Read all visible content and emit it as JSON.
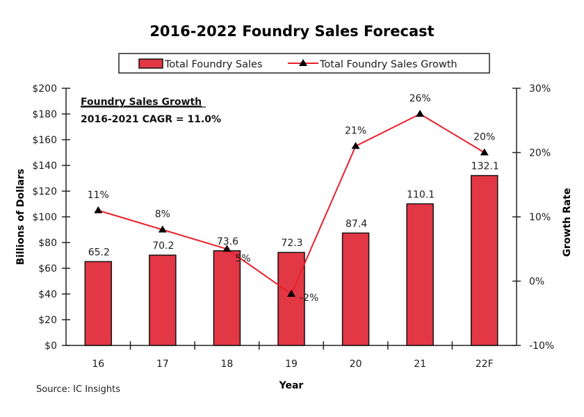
{
  "chart_data": {
    "type": "bar",
    "title": "2016-2022 Foundry Sales Forecast",
    "xlabel": "Year",
    "ylabel": "Billions of Dollars",
    "y2label": "Growth Rate",
    "categories": [
      "16",
      "17",
      "18",
      "19",
      "20",
      "21",
      "22F"
    ],
    "ylim": [
      0,
      200
    ],
    "yticks": [
      0,
      20,
      40,
      60,
      80,
      100,
      120,
      140,
      160,
      180,
      200
    ],
    "ytick_labels": [
      "$0",
      "$20",
      "$40",
      "$60",
      "$80",
      "$100",
      "$120",
      "$140",
      "$160",
      "$180",
      "$200"
    ],
    "y2lim": [
      -10,
      30
    ],
    "y2ticks": [
      -10,
      0,
      10,
      20,
      30
    ],
    "y2tick_labels": [
      "-10%",
      "0%",
      "10%",
      "20%",
      "30%"
    ],
    "grid": false,
    "legend_position": "top",
    "series": [
      {
        "name": "Total Foundry Sales",
        "type": "bar",
        "axis": "left",
        "color": "#e23744",
        "values": [
          65.2,
          70.2,
          73.6,
          72.3,
          87.4,
          110.1,
          132.1
        ],
        "labels": [
          "65.2",
          "70.2",
          "73.6",
          "72.3",
          "87.4",
          "110.1",
          "132.1"
        ]
      },
      {
        "name": "Total Foundry Sales Growth",
        "type": "line",
        "axis": "right",
        "color": "#e8202a",
        "marker": "triangle",
        "marker_color": "#000000",
        "values": [
          11,
          8,
          5,
          -2,
          21,
          26,
          20
        ],
        "labels": [
          "11%",
          "8%",
          "5%",
          "-2%",
          "21%",
          "26%",
          "20%"
        ]
      }
    ],
    "annotations": {
      "note_title": "Foundry Sales Growth",
      "note_body": "2016-2021 CAGR = 11.0%",
      "source": "Source: IC Insights"
    }
  }
}
